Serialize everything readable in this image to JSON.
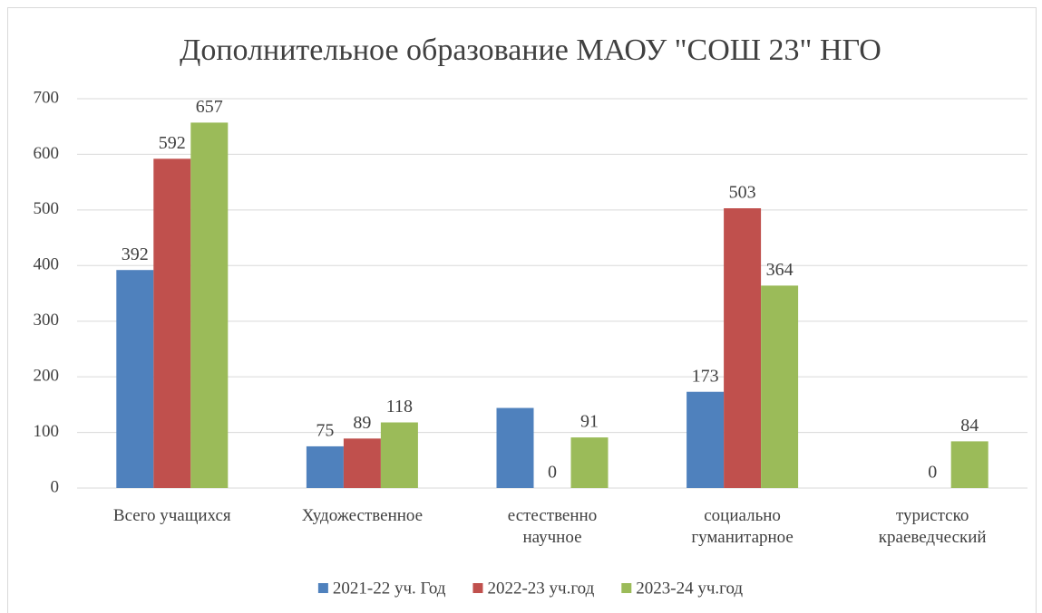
{
  "chart_data": {
    "type": "bar",
    "title": "Дополнительное образование МАОУ \"СОШ 23\" НГО",
    "categories": [
      "Всего учащихся",
      "Художественное",
      "естественно\nнаучное",
      "социально\nгуманитарное",
      "туристско\nкраеведческий"
    ],
    "series": [
      {
        "name": "2021-22 уч. Год",
        "color": "#4f81bd",
        "values": [
          392,
          75,
          144,
          173,
          null
        ],
        "value_labels": [
          "392",
          "75",
          null,
          "173",
          null
        ]
      },
      {
        "name": "2022-23 уч.год",
        "color": "#c0504d",
        "values": [
          592,
          89,
          0,
          503,
          0
        ]
      },
      {
        "name": "2023-24 уч.год",
        "color": "#9bbb59",
        "values": [
          657,
          118,
          91,
          364,
          84
        ]
      }
    ],
    "ylim": [
      0,
      700
    ],
    "yticks": [
      0,
      100,
      200,
      300,
      400,
      500,
      600,
      700
    ],
    "grid": true,
    "legend": "bottom"
  }
}
